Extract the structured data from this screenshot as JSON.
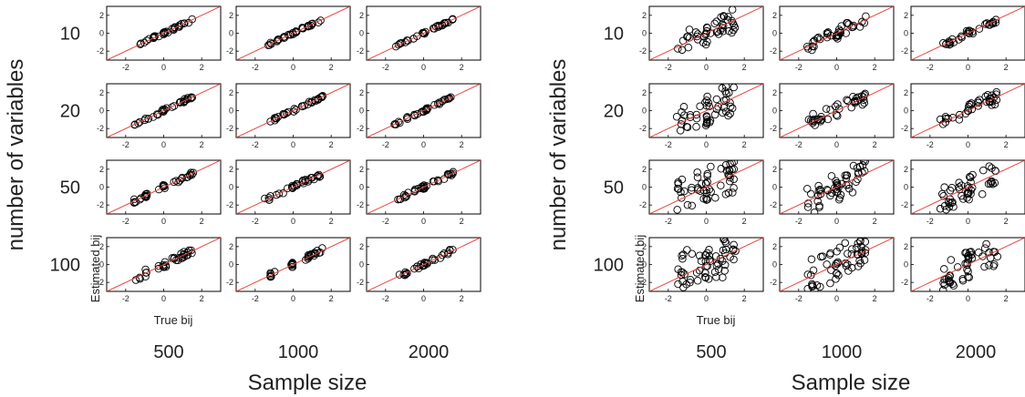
{
  "chart_data": [
    {
      "type": "scatter",
      "ylabel": "number of variables",
      "xlabel": "Sample size",
      "panel_xlabel": "True bij",
      "panel_ylabel": "Estimated bij",
      "rows": [
        "10",
        "20",
        "50",
        "100"
      ],
      "cols": [
        "500",
        "1000",
        "2000"
      ],
      "xticks": [
        "-2",
        "0",
        "2"
      ],
      "yticks": [
        "2",
        "0",
        "-2"
      ],
      "xlim": [
        -3,
        3
      ],
      "ylim": [
        -3,
        3
      ],
      "reference_line": "y = x",
      "reference_color": "#e8413c",
      "marker": "open circle",
      "spread": [
        [
          0.08,
          0.07,
          0.06
        ],
        [
          0.1,
          0.08,
          0.07
        ],
        [
          0.12,
          0.12,
          0.1
        ],
        [
          0.2,
          0.15,
          0.12
        ]
      ]
    },
    {
      "type": "scatter",
      "ylabel": "number of variables",
      "xlabel": "Sample size",
      "panel_xlabel": "True bij",
      "panel_ylabel": "Estimated bij",
      "rows": [
        "10",
        "20",
        "50",
        "100"
      ],
      "cols": [
        "500",
        "1000",
        "2000"
      ],
      "xticks": [
        "-2",
        "0",
        "2"
      ],
      "yticks": [
        "2",
        "0",
        "-2"
      ],
      "xlim": [
        -3,
        3
      ],
      "ylim": [
        -3,
        3
      ],
      "reference_line": "y = x",
      "reference_color": "#e8413c",
      "marker": "open circle",
      "spread": [
        [
          0.6,
          0.3,
          0.15
        ],
        [
          0.8,
          0.4,
          0.35
        ],
        [
          1.0,
          0.9,
          0.7
        ],
        [
          1.2,
          1.0,
          0.8
        ]
      ]
    }
  ]
}
